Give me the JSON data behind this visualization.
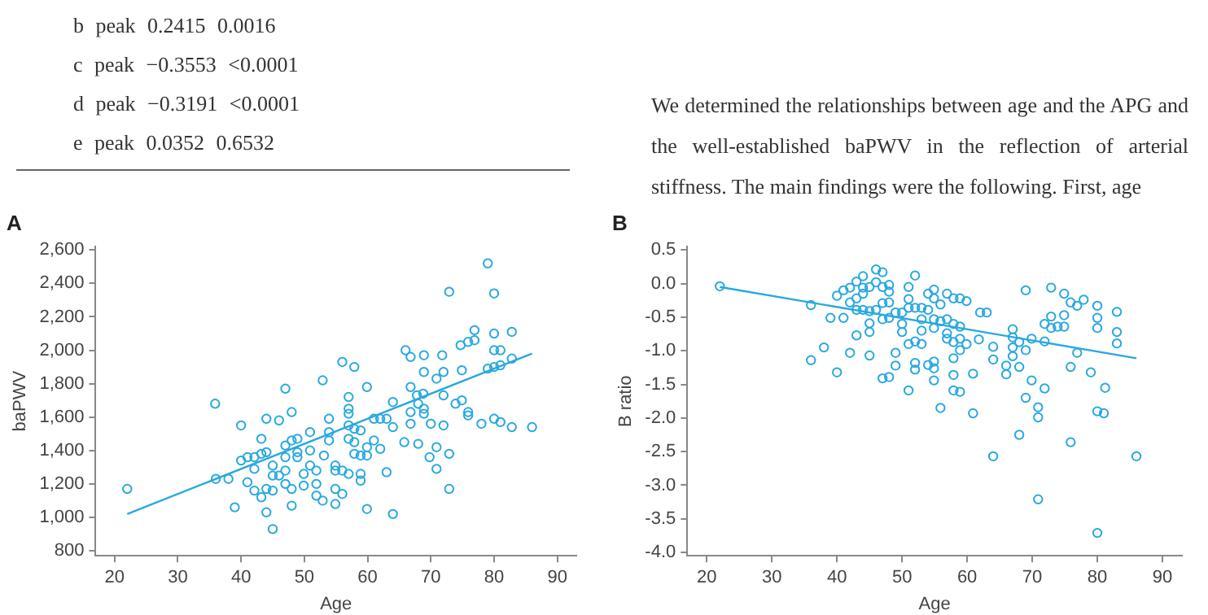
{
  "chart_data": [
    {
      "type": "scatter",
      "title": "A",
      "xlabel": "Age",
      "ylabel": "baPWV",
      "annotations": [
        "b peak 0.2415 0.0016",
        "c peak −0.3553 <0.0001",
        "d peak −0.3191 <0.0001",
        "e peak 0.0352 0.6532"
      ],
      "xlim": [
        17,
        93
      ],
      "xticks": [
        20,
        30,
        40,
        50,
        60,
        70,
        80,
        90
      ],
      "ylim": [
        770,
        2620
      ],
      "yticks": [
        {
          "value": 800,
          "label": "800"
        },
        {
          "value": 1000,
          "label": "1,000"
        },
        {
          "value": 1200,
          "label": "1,200"
        },
        {
          "value": 1400,
          "label": "1,400"
        },
        {
          "value": 1600,
          "label": "1,600"
        },
        {
          "value": 1800,
          "label": "1,800"
        },
        {
          "value": 2000,
          "label": "2,000"
        },
        {
          "value": 2200,
          "label": "2,200"
        },
        {
          "value": 2400,
          "label": "2,400"
        },
        {
          "value": 2600,
          "label": "2,600"
        }
      ],
      "grid": false,
      "legend": false,
      "marker": "circle",
      "series": [
        {
          "color": "#29a8e0",
          "x": [
            22,
            35.9,
            36,
            38,
            39,
            40,
            40,
            41,
            41,
            42.1,
            42.1,
            42.1,
            43.2,
            43.2,
            43.2,
            44,
            44,
            44,
            44,
            45,
            45,
            45,
            45,
            46,
            46,
            47,
            47,
            47,
            47,
            47,
            48,
            48,
            48,
            48,
            48.9,
            48.9,
            48.9,
            49.9,
            49.9,
            50.9,
            50.9,
            50.9,
            51.9,
            51.9,
            51.9,
            52.9,
            52.9,
            53.1,
            53.9,
            53.9,
            53.9,
            54.9,
            54.9,
            54.9,
            54.9,
            56,
            56,
            56,
            57,
            57,
            57,
            57,
            57,
            57,
            57.9,
            57.9,
            57.9,
            57.9,
            58.9,
            58.9,
            58.9,
            58.9,
            59.9,
            59.9,
            59.9,
            59.9,
            61,
            61,
            62,
            62,
            63,
            63,
            64,
            64,
            64,
            65.8,
            66,
            66.8,
            66.8,
            66.8,
            66.8,
            67.8,
            68,
            68,
            68.8,
            68.9,
            68.9,
            68.9,
            68.9,
            69.8,
            70,
            70.9,
            70.9,
            70.9,
            71.8,
            72,
            72,
            72,
            72.9,
            72.9,
            72.9,
            73.9,
            74.7,
            74.9,
            74.9,
            75.9,
            75.9,
            75.9,
            76.9,
            76.9,
            78,
            79,
            79,
            80,
            80,
            80,
            80,
            80,
            81,
            81,
            81,
            82.8,
            82.8,
            82.8,
            86
          ],
          "values": [
            1170,
            1680,
            1230,
            1230,
            1060,
            1340,
            1550,
            1360,
            1210,
            1290,
            1360,
            1160,
            1380,
            1470,
            1120,
            1590,
            1390,
            1170,
            1030,
            1310,
            1250,
            1160,
            930,
            1580,
            1250,
            1770,
            1430,
            1360,
            1280,
            1200,
            1630,
            1460,
            1170,
            1070,
            1470,
            1390,
            1360,
            1260,
            1190,
            1510,
            1400,
            1310,
            1280,
            1200,
            1130,
            1820,
            1100,
            1370,
            1590,
            1510,
            1460,
            1310,
            1280,
            1170,
            1080,
            1930,
            1140,
            1280,
            1720,
            1650,
            1620,
            1550,
            1470,
            1260,
            1900,
            1530,
            1450,
            1380,
            1520,
            1370,
            1260,
            1220,
            1780,
            1420,
            1370,
            1050,
            1590,
            1460,
            1590,
            1410,
            1590,
            1270,
            1690,
            1540,
            1020,
            1450,
            2000,
            1960,
            1780,
            1630,
            1560,
            1730,
            1680,
            1440,
            1740,
            1970,
            1870,
            1650,
            1620,
            1360,
            1560,
            1830,
            1420,
            1290,
            1970,
            1870,
            1730,
            1550,
            2350,
            1380,
            1170,
            1680,
            2030,
            1880,
            1700,
            2050,
            1630,
            1610,
            2120,
            2060,
            1560,
            2520,
            1890,
            2340,
            2100,
            2000,
            1900,
            1590,
            2000,
            1910,
            1570,
            2110,
            1950,
            1540,
            1540
          ]
        },
        {
          "type": "line",
          "marker": "none",
          "color": "#29a8e0",
          "x": [
            22,
            86
          ],
          "values": [
            1020,
            1980
          ]
        }
      ]
    },
    {
      "type": "scatter",
      "title": "B",
      "xlabel": "Age",
      "ylabel": "B ratio",
      "annotations": [
        "We determined the relationships between age and the APG and the well-established baPWV in the reflection of arterial stiffness. The main findings were the following. First, age"
      ],
      "xlim": [
        17,
        93
      ],
      "xticks": [
        20,
        30,
        40,
        50,
        60,
        70,
        80,
        90
      ],
      "ylim": [
        -4.05,
        0.55
      ],
      "yticks": [
        {
          "value": -4,
          "label": "-4.0"
        },
        {
          "value": -3.5,
          "label": "-3.5"
        },
        {
          "value": -3,
          "label": "-3.0"
        },
        {
          "value": -2.5,
          "label": "-2.5"
        },
        {
          "value": -2,
          "label": "-2.0"
        },
        {
          "value": -1.5,
          "label": "-1.5"
        },
        {
          "value": -1,
          "label": "-1.0"
        },
        {
          "value": -0.5,
          "label": "-0.5"
        },
        {
          "value": 0,
          "label": "0.0"
        },
        {
          "value": 0.5,
          "label": "0.5"
        }
      ],
      "grid": false,
      "legend": false,
      "marker": "circle",
      "series": [
        {
          "color": "#29a8e0",
          "x": [
            22,
            36,
            36,
            38,
            39,
            40,
            40,
            41,
            41,
            42,
            42,
            42,
            43,
            43,
            43,
            43,
            44,
            44,
            44,
            44,
            45,
            45,
            45,
            45,
            45,
            46,
            46,
            46,
            47,
            47,
            47,
            47,
            47,
            48,
            48,
            48,
            48,
            48,
            49,
            49,
            49,
            50,
            50,
            50,
            51,
            51,
            51,
            51,
            51,
            52,
            52,
            52,
            52,
            52,
            53,
            53,
            53,
            53,
            54,
            54,
            54,
            54.9,
            54.9,
            54.9,
            54.9,
            54.9,
            54.9,
            54.9,
            55.9,
            55.9,
            55.9,
            56.9,
            56.9,
            56.9,
            56.9,
            57.9,
            57.9,
            57.9,
            57.9,
            57.9,
            57.9,
            58.9,
            58.9,
            58.9,
            58.9,
            58.9,
            59.9,
            59.9,
            60.9,
            60.9,
            61.8,
            62,
            63,
            64,
            64,
            64,
            66,
            66,
            67,
            67,
            67,
            67,
            68,
            68,
            68,
            69,
            69,
            69,
            69.9,
            69.9,
            70.9,
            70.9,
            70.9,
            71.9,
            71.9,
            71.9,
            72.9,
            72.9,
            72.9,
            73.9,
            74.9,
            74.9,
            74.9,
            75.9,
            75.9,
            75.9,
            76.9,
            76.9,
            77.9,
            79,
            80,
            80,
            80,
            80,
            80,
            81,
            81.2,
            83,
            83,
            83,
            86
          ],
          "values": [
            -0.04,
            -0.32,
            -1.14,
            -0.95,
            -0.51,
            -0.18,
            -1.32,
            -0.1,
            -0.51,
            -0.06,
            -0.28,
            -1.03,
            0.03,
            -0.22,
            -0.39,
            -0.77,
            0.11,
            -0.06,
            -0.15,
            -0.39,
            -0.05,
            -0.41,
            -0.59,
            -0.72,
            -1.07,
            0.21,
            0.02,
            -0.39,
            0.17,
            -0.05,
            -0.29,
            -0.53,
            -1.41,
            -0.02,
            -0.12,
            -0.28,
            -0.51,
            -1.39,
            -0.43,
            -1.03,
            -1.22,
            -0.43,
            -0.6,
            -0.72,
            -0.05,
            -0.23,
            -0.36,
            -0.9,
            -1.59,
            0.12,
            -0.36,
            -0.86,
            -1.18,
            -1.28,
            -0.36,
            -0.53,
            -0.7,
            -0.9,
            -0.15,
            -0.39,
            -1.21,
            -0.09,
            -0.22,
            -0.53,
            -0.66,
            -1.16,
            -1.26,
            -1.44,
            -0.31,
            -0.56,
            -1.85,
            -0.15,
            -0.53,
            -0.74,
            -0.82,
            -0.22,
            -0.6,
            -0.87,
            -1.11,
            -1.36,
            -1.59,
            -0.22,
            -0.64,
            -0.82,
            -0.99,
            -1.61,
            -0.26,
            -0.9,
            -1.34,
            -1.93,
            -0.83,
            -0.43,
            -0.43,
            -0.94,
            -1.13,
            -2.57,
            -1.22,
            -1.35,
            -0.68,
            -0.8,
            -0.95,
            -1.08,
            -0.87,
            -1.24,
            -2.25,
            -0.1,
            -0.99,
            -1.7,
            -1.44,
            -0.82,
            -1.84,
            -1.99,
            -3.21,
            -0.6,
            -0.86,
            -1.56,
            -0.06,
            -0.49,
            -0.66,
            -0.64,
            -0.15,
            -0.47,
            -0.64,
            -0.28,
            -1.24,
            -2.36,
            -0.33,
            -1.03,
            -0.24,
            -1.32,
            -0.33,
            -0.51,
            -0.66,
            -1.9,
            -3.71,
            -1.93,
            -1.55,
            -0.42,
            -0.72,
            -0.89,
            -2.57
          ]
        },
        {
          "type": "line",
          "marker": "none",
          "color": "#29a8e0",
          "x": [
            22,
            86
          ],
          "values": [
            -0.05,
            -1.11
          ]
        }
      ]
    }
  ]
}
